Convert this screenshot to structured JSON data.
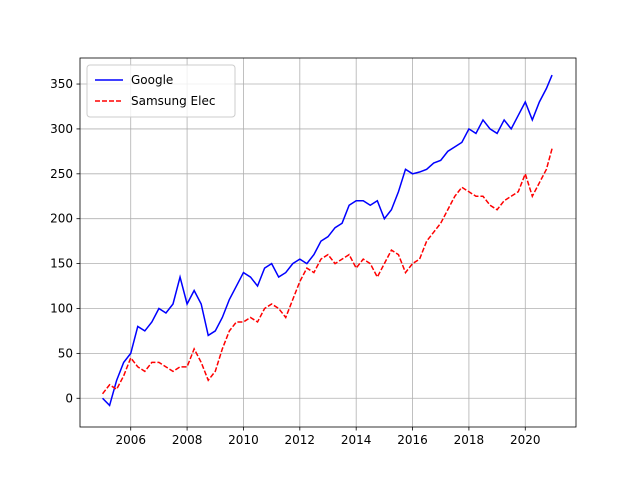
{
  "chart_data": {
    "type": "line",
    "x": [
      2005.0,
      2005.25,
      2005.5,
      2005.75,
      2006.0,
      2006.25,
      2006.5,
      2006.75,
      2007.0,
      2007.25,
      2007.5,
      2007.75,
      2008.0,
      2008.25,
      2008.5,
      2008.75,
      2009.0,
      2009.25,
      2009.5,
      2009.75,
      2010.0,
      2010.25,
      2010.5,
      2010.75,
      2011.0,
      2011.25,
      2011.5,
      2011.75,
      2012.0,
      2012.25,
      2012.5,
      2012.75,
      2013.0,
      2013.25,
      2013.5,
      2013.75,
      2014.0,
      2014.25,
      2014.5,
      2014.75,
      2015.0,
      2015.25,
      2015.5,
      2015.75,
      2016.0,
      2016.25,
      2016.5,
      2016.75,
      2017.0,
      2017.25,
      2017.5,
      2017.75,
      2018.0,
      2018.25,
      2018.5,
      2018.75,
      2019.0,
      2019.25,
      2019.5,
      2019.75,
      2020.0,
      2020.25,
      2020.5,
      2020.75,
      2020.95
    ],
    "series": [
      {
        "name": "Google",
        "color": "#0000ff",
        "linestyle": "solid",
        "values": [
          0,
          -8,
          20,
          40,
          50,
          80,
          75,
          85,
          100,
          95,
          105,
          135,
          105,
          120,
          105,
          70,
          75,
          90,
          110,
          125,
          140,
          135,
          125,
          145,
          150,
          135,
          140,
          150,
          155,
          150,
          160,
          175,
          180,
          190,
          195,
          215,
          220,
          220,
          215,
          220,
          200,
          210,
          230,
          255,
          250,
          252,
          255,
          262,
          265,
          275,
          280,
          285,
          300,
          295,
          310,
          300,
          295,
          310,
          300,
          315,
          330,
          310,
          330,
          345,
          360
        ]
      },
      {
        "name": "Samsung Elec",
        "color": "#ff0000",
        "linestyle": "dashed",
        "values": [
          5,
          15,
          10,
          25,
          45,
          35,
          30,
          40,
          40,
          35,
          30,
          35,
          35,
          55,
          40,
          20,
          30,
          55,
          75,
          85,
          85,
          90,
          85,
          100,
          105,
          100,
          90,
          110,
          130,
          145,
          140,
          155,
          160,
          150,
          155,
          160,
          145,
          155,
          150,
          135,
          150,
          165,
          160,
          140,
          150,
          155,
          175,
          185,
          195,
          210,
          225,
          235,
          230,
          225,
          225,
          215,
          210,
          220,
          225,
          230,
          250,
          225,
          240,
          255,
          278
        ]
      }
    ],
    "xlim": [
      2004.2,
      2021.8
    ],
    "xticks": [
      2006,
      2008,
      2010,
      2012,
      2014,
      2016,
      2018,
      2020
    ],
    "ylim": [
      -32,
      379
    ],
    "yticks": [
      0,
      50,
      100,
      150,
      200,
      250,
      300,
      350
    ],
    "grid": true,
    "legend": "upper left"
  }
}
